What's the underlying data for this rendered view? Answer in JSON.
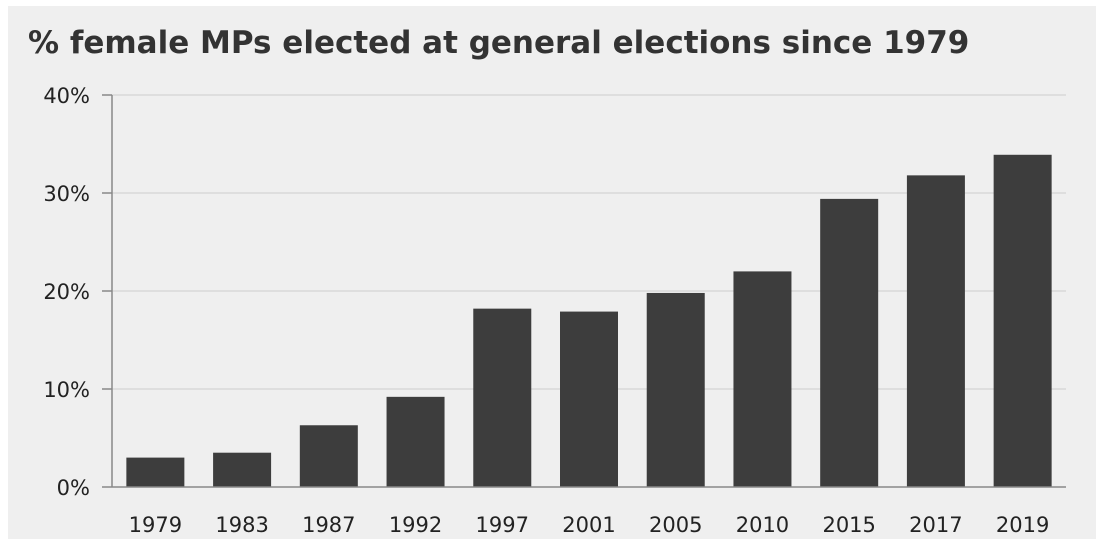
{
  "chart_data": {
    "type": "bar",
    "title": "% female MPs elected at general elections since 1979",
    "xlabel": "",
    "ylabel": "",
    "categories": [
      "1979",
      "1983",
      "1987",
      "1992",
      "1997",
      "2001",
      "2005",
      "2010",
      "2015",
      "2017",
      "2019"
    ],
    "values": [
      3.0,
      3.5,
      6.3,
      9.2,
      18.2,
      17.9,
      19.8,
      22.0,
      29.4,
      31.8,
      33.9
    ],
    "ylim": [
      0,
      40
    ],
    "yticks": [
      0,
      10,
      20,
      30,
      40
    ],
    "ytick_labels": [
      "0%",
      "10%",
      "20%",
      "30%",
      "40%"
    ],
    "grid": true,
    "legend": "none",
    "colors": {
      "bar": "#3d3d3d",
      "background": "#efefef",
      "grid": "#d4d4d4",
      "axis": "#888888",
      "text": "#222222"
    }
  }
}
